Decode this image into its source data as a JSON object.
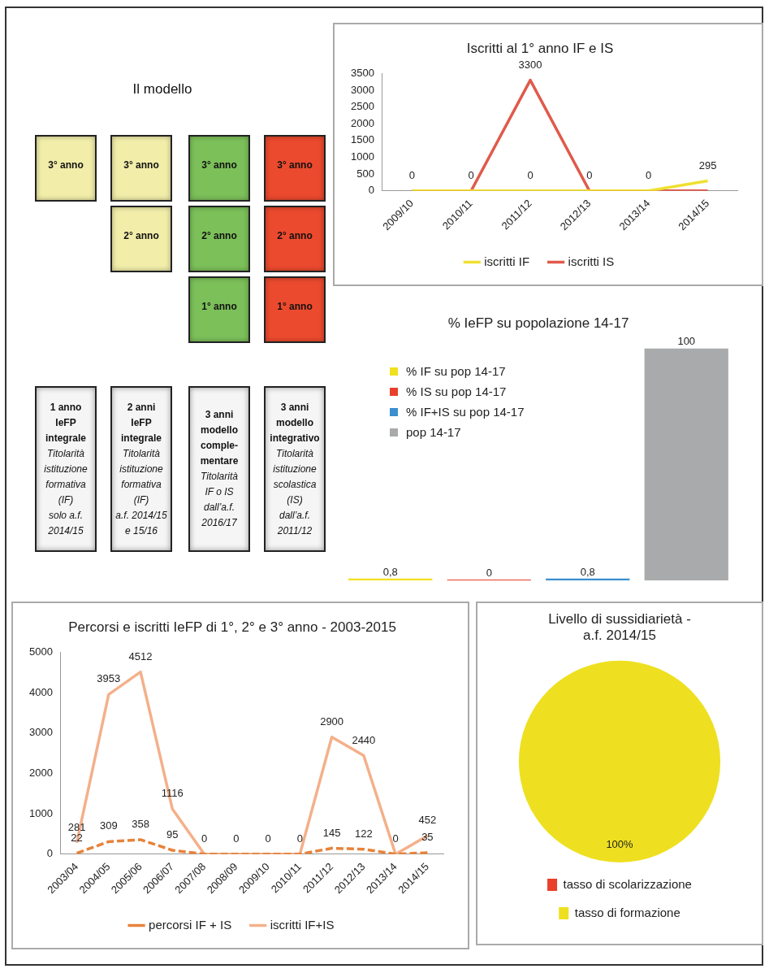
{
  "chart_data": [
    {
      "type": "other",
      "title": "Il modello",
      "annotations": [
        "3° anno",
        "3° anno",
        "2° anno",
        "3° anno",
        "2° anno",
        "1° anno",
        "3° anno",
        "2° anno",
        "1° anno",
        "1 anno\nIeFP\nintegrale",
        "Titolarità\nistituzione\nformativa\n(IF)\nsolo a.f.\n2014/15",
        "2 anni\nIeFP\nintegrale",
        "Titolarità\nistituzione\nformativa\n(IF)\na.f. 2014/15\ne 15/16",
        "3 anni\nmodello\ncomple-\nmentare",
        "Titolarità\nIF o IS\ndall’a.f.\n2016/17",
        "3 anni\nmodello\nintegrativo",
        "Titolarità\nistituzione\nscolastica\n(IS)\ndall’a.f.\n2011/12"
      ]
    },
    {
      "type": "line",
      "title": "Iscritti al 1° anno IF e IS",
      "categories": [
        "2009/10",
        "2010/11",
        "2011/12",
        "2012/13",
        "2013/14",
        "2014/15"
      ],
      "ylim": [
        0,
        3500
      ],
      "yticks": [
        0,
        500,
        1000,
        1500,
        2000,
        2500,
        3000,
        3500
      ],
      "grid": false,
      "legend": "bottom",
      "marker": "none",
      "series": [
        {
          "name": "iscritti IF",
          "color": "#f0e030",
          "values": [
            0,
            0,
            0,
            0,
            0,
            295
          ],
          "value_labels": [
            "0",
            "0",
            "0",
            "0",
            "0",
            "295"
          ]
        },
        {
          "name": "iscritti IS",
          "color": "#e05a4a",
          "values": [
            0,
            0,
            3300,
            0,
            0,
            0
          ],
          "value_labels": [
            null,
            null,
            "3300",
            null,
            null,
            null
          ]
        }
      ]
    },
    {
      "type": "bar",
      "title": "% IeFP su popolazione 14-17",
      "categories": [
        null
      ],
      "grid": false,
      "legend": "top left",
      "series": [
        {
          "name": "% IF su pop 14-17",
          "color": "#f0e020",
          "values": [
            0.8
          ],
          "value_labels": [
            "0,8"
          ]
        },
        {
          "name": "% IS su pop 14-17",
          "color": "#e8402a",
          "values": [
            0
          ],
          "value_labels": [
            "0"
          ]
        },
        {
          "name": "% IF+IS su pop 14-17",
          "color": "#3a8fd0",
          "values": [
            0.8
          ],
          "value_labels": [
            "0,8"
          ]
        },
        {
          "name": "pop 14-17",
          "color": "#a8aaab",
          "values": [
            100
          ],
          "value_labels": [
            "100"
          ]
        }
      ]
    },
    {
      "type": "line",
      "title": "Percorsi e iscritti IeFP di 1°, 2° e 3° anno - 2003-2015",
      "categories": [
        "2003/04",
        "2004/05",
        "2005/06",
        "2006/07",
        "2007/08",
        "2008/09",
        "2009/10",
        "2010/11",
        "2011/12",
        "2012/13",
        "2013/14",
        "2014/15"
      ],
      "ylim": [
        0,
        5000
      ],
      "yticks": [
        0,
        1000,
        2000,
        3000,
        4000,
        5000
      ],
      "grid": false,
      "legend": "bottom",
      "marker": "none",
      "series": [
        {
          "name": "percorsi IF + IS",
          "color": "#e8823a",
          "line_style": "dashed",
          "values": [
            22,
            309,
            358,
            95,
            0,
            0,
            0,
            0,
            145,
            122,
            0,
            35
          ],
          "value_labels": [
            "22",
            "309",
            "358",
            "95",
            "0",
            "0",
            "0",
            "0",
            "145",
            "122",
            "0",
            "35"
          ]
        },
        {
          "name": "iscritti IF+IS",
          "color": "#f4b08a",
          "values": [
            281,
            3953,
            4512,
            1116,
            0,
            0,
            0,
            0,
            2900,
            2440,
            0,
            452
          ],
          "value_labels": [
            "281",
            "3953",
            "4512",
            "1116",
            null,
            null,
            null,
            null,
            "2900",
            "2440",
            null,
            "452"
          ]
        }
      ]
    },
    {
      "type": "pie",
      "title": "Livello di sussidiarietà -\na.f. 2014/15",
      "categories": [
        "tasso di scolarizzazione",
        "tasso di formazione"
      ],
      "values": [
        0,
        100
      ],
      "colors": [
        "#e8402a",
        "#eee020"
      ],
      "value_labels": [
        null,
        "100%"
      ],
      "legend": "bottom"
    }
  ]
}
